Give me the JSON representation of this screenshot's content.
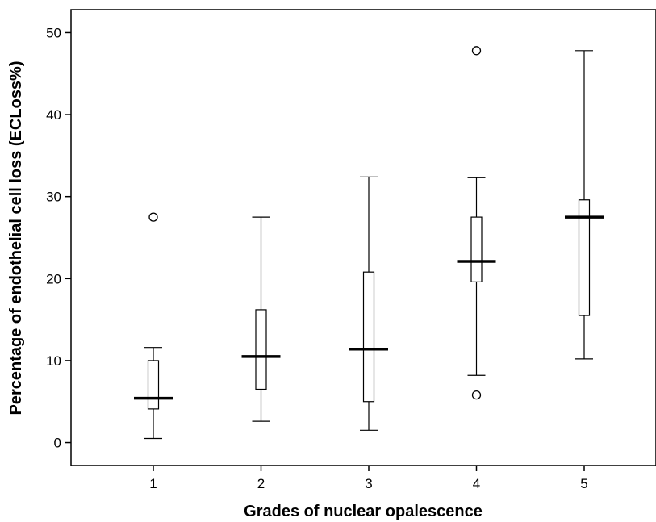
{
  "chart_data": {
    "type": "boxplot",
    "xlabel": "Grades of nuclear opalescence",
    "ylabel": "Percentage of endothelial cell loss (ECLoss%)",
    "categories": [
      "1",
      "2",
      "3",
      "4",
      "5"
    ],
    "y_ticks": [
      "0",
      "10",
      "20",
      "30",
      "40",
      "50"
    ],
    "ylim": [
      -2.8,
      52.8
    ],
    "grid": false,
    "boxes": [
      {
        "category": "1",
        "whisker_low": 0.5,
        "q1": 4.1,
        "median": 5.4,
        "q3": 10.0,
        "whisker_high": 11.6,
        "outliers": [
          27.5
        ]
      },
      {
        "category": "2",
        "whisker_low": 2.6,
        "q1": 6.5,
        "median": 10.5,
        "q3": 16.2,
        "whisker_high": 27.5,
        "outliers": []
      },
      {
        "category": "3",
        "whisker_low": 1.5,
        "q1": 5.0,
        "median": 11.4,
        "q3": 20.8,
        "whisker_high": 32.4,
        "outliers": []
      },
      {
        "category": "4",
        "whisker_low": 8.2,
        "q1": 19.6,
        "median": 22.1,
        "q3": 27.5,
        "whisker_high": 32.3,
        "outliers": [
          5.8,
          47.8
        ]
      },
      {
        "category": "5",
        "whisker_low": 10.2,
        "q1": 15.5,
        "median": 27.5,
        "q3": 29.6,
        "whisker_high": 47.8,
        "outliers": []
      }
    ]
  }
}
